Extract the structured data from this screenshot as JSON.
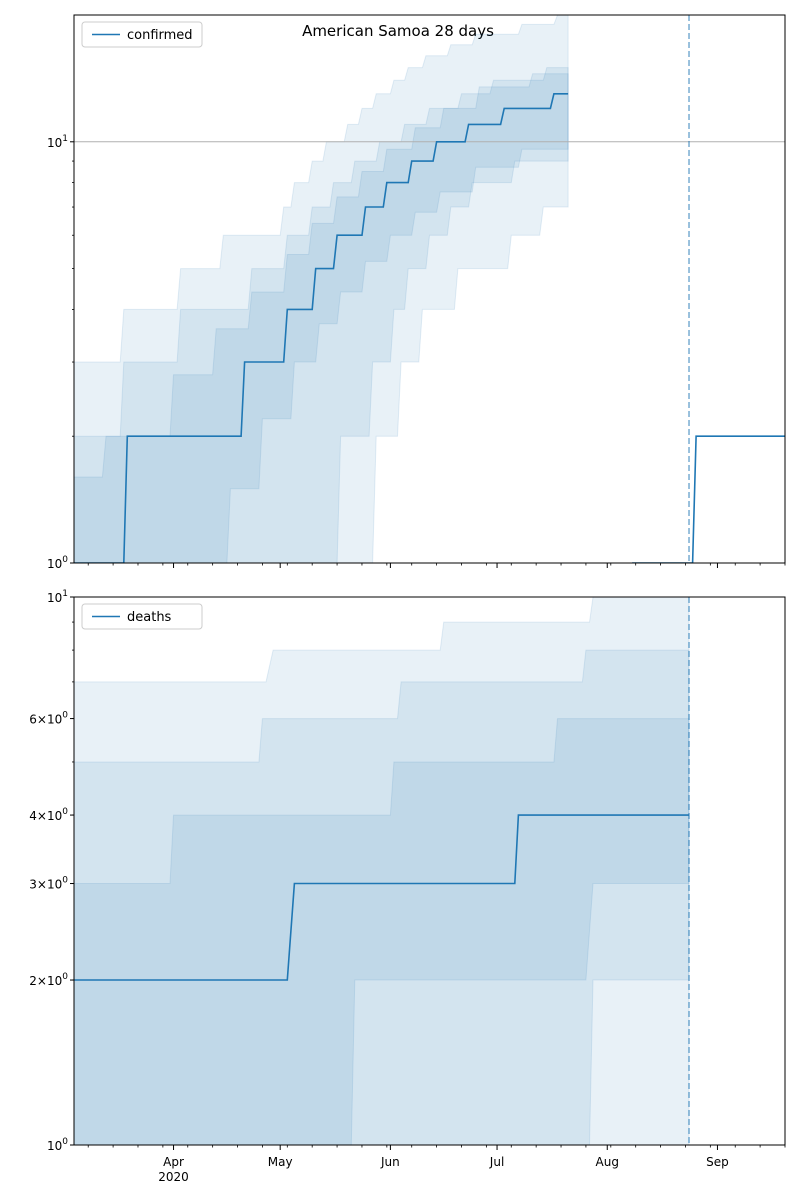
{
  "figure": {
    "title": "American Samoa 28 days"
  },
  "chart_data": [
    {
      "type": "line",
      "name": "confirmed",
      "yscale": "log",
      "ylim": [
        1,
        20
      ],
      "xlim": [
        "2020-03-04",
        "2020-09-20"
      ],
      "yticks": [
        {
          "value": 1,
          "base": "10",
          "exp": "0"
        },
        {
          "value": 10,
          "base": "10",
          "exp": "1"
        }
      ],
      "hline": 10,
      "vline": "2020-08-24",
      "legend": {
        "label": "confirmed",
        "loc": "upper left"
      },
      "series": [
        {
          "name": "confirmed",
          "color": "#1f77b4",
          "points": [
            [
              "2020-03-04",
              1
            ],
            [
              "2020-03-18",
              1
            ],
            [
              "2020-03-19",
              2
            ],
            [
              "2020-04-20",
              2
            ],
            [
              "2020-04-21",
              3
            ],
            [
              "2020-05-02",
              3
            ],
            [
              "2020-05-03",
              4
            ],
            [
              "2020-05-10",
              4
            ],
            [
              "2020-05-11",
              5
            ],
            [
              "2020-05-16",
              5
            ],
            [
              "2020-05-17",
              6
            ],
            [
              "2020-05-24",
              6
            ],
            [
              "2020-05-25",
              7
            ],
            [
              "2020-05-30",
              7
            ],
            [
              "2020-05-31",
              8
            ],
            [
              "2020-06-06",
              8
            ],
            [
              "2020-06-07",
              9
            ],
            [
              "2020-06-13",
              9
            ],
            [
              "2020-06-14",
              10
            ],
            [
              "2020-06-22",
              10
            ],
            [
              "2020-06-23",
              11
            ],
            [
              "2020-07-02",
              11
            ],
            [
              "2020-07-03",
              12
            ],
            [
              "2020-07-16",
              12
            ],
            [
              "2020-07-17",
              13
            ],
            [
              "2020-07-21",
              13
            ]
          ]
        },
        {
          "name": "",
          "color": "#1f77b4",
          "points": [
            [
              "2020-08-08",
              1
            ],
            [
              "2020-08-25",
              1
            ],
            [
              "2020-08-26",
              2
            ],
            [
              "2020-09-20",
              2
            ]
          ]
        }
      ],
      "bands": [
        {
          "opacity": 0.1,
          "upper": [
            [
              "2020-03-04",
              3
            ],
            [
              "2020-03-17",
              3
            ],
            [
              "2020-03-18",
              4
            ],
            [
              "2020-04-02",
              4
            ],
            [
              "2020-04-03",
              5
            ],
            [
              "2020-04-14",
              5
            ],
            [
              "2020-04-15",
              6
            ],
            [
              "2020-05-01",
              6
            ],
            [
              "2020-05-02",
              7
            ],
            [
              "2020-05-04",
              7
            ],
            [
              "2020-05-05",
              8
            ],
            [
              "2020-05-09",
              8
            ],
            [
              "2020-05-10",
              9
            ],
            [
              "2020-05-13",
              9
            ],
            [
              "2020-05-14",
              10
            ],
            [
              "2020-05-19",
              10
            ],
            [
              "2020-05-20",
              11
            ],
            [
              "2020-05-23",
              11
            ],
            [
              "2020-05-24",
              12
            ],
            [
              "2020-05-27",
              12
            ],
            [
              "2020-05-28",
              13
            ],
            [
              "2020-06-01",
              13
            ],
            [
              "2020-06-02",
              14
            ],
            [
              "2020-06-05",
              14
            ],
            [
              "2020-06-06",
              15
            ],
            [
              "2020-06-10",
              15
            ],
            [
              "2020-06-11",
              16
            ],
            [
              "2020-06-17",
              16
            ],
            [
              "2020-06-18",
              17
            ],
            [
              "2020-06-24",
              17
            ],
            [
              "2020-06-25",
              18
            ],
            [
              "2020-07-07",
              18
            ],
            [
              "2020-07-08",
              19
            ],
            [
              "2020-07-17",
              19
            ],
            [
              "2020-07-18",
              20
            ],
            [
              "2020-07-21",
              20
            ]
          ],
          "lower": [
            [
              "2020-03-04",
              1
            ],
            [
              "2020-05-27",
              1
            ],
            [
              "2020-05-28",
              2
            ],
            [
              "2020-06-03",
              2
            ],
            [
              "2020-06-04",
              3
            ],
            [
              "2020-06-09",
              3
            ],
            [
              "2020-06-10",
              4
            ],
            [
              "2020-06-19",
              4
            ],
            [
              "2020-06-20",
              5
            ],
            [
              "2020-07-04",
              5
            ],
            [
              "2020-07-05",
              6
            ],
            [
              "2020-07-13",
              6
            ],
            [
              "2020-07-14",
              7
            ],
            [
              "2020-07-21",
              7
            ]
          ]
        },
        {
          "opacity": 0.1,
          "upper": [
            [
              "2020-03-04",
              2
            ],
            [
              "2020-03-17",
              2
            ],
            [
              "2020-03-18",
              3
            ],
            [
              "2020-04-02",
              3
            ],
            [
              "2020-04-03",
              4
            ],
            [
              "2020-04-22",
              4
            ],
            [
              "2020-04-23",
              5
            ],
            [
              "2020-05-02",
              5
            ],
            [
              "2020-05-03",
              6
            ],
            [
              "2020-05-09",
              6
            ],
            [
              "2020-05-10",
              7
            ],
            [
              "2020-05-15",
              7
            ],
            [
              "2020-05-16",
              8
            ],
            [
              "2020-05-21",
              8
            ],
            [
              "2020-05-22",
              9
            ],
            [
              "2020-05-28",
              9
            ],
            [
              "2020-05-29",
              10
            ],
            [
              "2020-06-04",
              10
            ],
            [
              "2020-06-05",
              11
            ],
            [
              "2020-06-11",
              11
            ],
            [
              "2020-06-12",
              12
            ],
            [
              "2020-06-20",
              12
            ],
            [
              "2020-06-21",
              13
            ],
            [
              "2020-06-29",
              13
            ],
            [
              "2020-06-30",
              14
            ],
            [
              "2020-07-14",
              14
            ],
            [
              "2020-07-15",
              15
            ],
            [
              "2020-07-21",
              15
            ]
          ],
          "lower": [
            [
              "2020-03-04",
              1
            ],
            [
              "2020-05-17",
              1
            ],
            [
              "2020-05-18",
              2
            ],
            [
              "2020-05-26",
              2
            ],
            [
              "2020-05-27",
              3
            ],
            [
              "2020-06-01",
              3
            ],
            [
              "2020-06-02",
              4
            ],
            [
              "2020-06-05",
              4
            ],
            [
              "2020-06-06",
              5
            ],
            [
              "2020-06-11",
              5
            ],
            [
              "2020-06-12",
              6
            ],
            [
              "2020-06-17",
              6
            ],
            [
              "2020-06-18",
              7
            ],
            [
              "2020-06-23",
              7
            ],
            [
              "2020-06-24",
              8
            ],
            [
              "2020-07-05",
              8
            ],
            [
              "2020-07-06",
              9
            ],
            [
              "2020-07-21",
              9
            ]
          ]
        },
        {
          "opacity": 0.1,
          "upper": [
            [
              "2020-03-04",
              1.6
            ],
            [
              "2020-03-12",
              1.6
            ],
            [
              "2020-03-13",
              2
            ],
            [
              "2020-03-31",
              2
            ],
            [
              "2020-04-01",
              2.8
            ],
            [
              "2020-04-12",
              2.8
            ],
            [
              "2020-04-13",
              3.6
            ],
            [
              "2020-04-22",
              3.6
            ],
            [
              "2020-04-23",
              4.4
            ],
            [
              "2020-05-02",
              4.4
            ],
            [
              "2020-05-03",
              5.4
            ],
            [
              "2020-05-09",
              5.4
            ],
            [
              "2020-05-10",
              6.4
            ],
            [
              "2020-05-16",
              6.4
            ],
            [
              "2020-05-17",
              7.4
            ],
            [
              "2020-05-23",
              7.4
            ],
            [
              "2020-05-24",
              8.5
            ],
            [
              "2020-05-30",
              8.5
            ],
            [
              "2020-05-31",
              9.6
            ],
            [
              "2020-06-07",
              9.6
            ],
            [
              "2020-06-08",
              10.8
            ],
            [
              "2020-06-15",
              10.8
            ],
            [
              "2020-06-16",
              12
            ],
            [
              "2020-06-25",
              12
            ],
            [
              "2020-06-26",
              13.5
            ],
            [
              "2020-07-10",
              13.5
            ],
            [
              "2020-07-11",
              14.5
            ],
            [
              "2020-07-21",
              14.5
            ]
          ],
          "lower": [
            [
              "2020-03-04",
              1
            ],
            [
              "2020-04-16",
              1
            ],
            [
              "2020-04-17",
              1.5
            ],
            [
              "2020-04-25",
              1.5
            ],
            [
              "2020-04-26",
              2.2
            ],
            [
              "2020-05-04",
              2.2
            ],
            [
              "2020-05-05",
              3
            ],
            [
              "2020-05-11",
              3
            ],
            [
              "2020-05-12",
              3.7
            ],
            [
              "2020-05-17",
              3.7
            ],
            [
              "2020-05-18",
              4.4
            ],
            [
              "2020-05-24",
              4.4
            ],
            [
              "2020-05-25",
              5.2
            ],
            [
              "2020-05-31",
              5.2
            ],
            [
              "2020-06-01",
              6
            ],
            [
              "2020-06-07",
              6
            ],
            [
              "2020-06-08",
              6.8
            ],
            [
              "2020-06-14",
              6.8
            ],
            [
              "2020-06-15",
              7.6
            ],
            [
              "2020-06-24",
              7.6
            ],
            [
              "2020-06-25",
              8.7
            ],
            [
              "2020-07-07",
              8.7
            ],
            [
              "2020-07-08",
              9.6
            ],
            [
              "2020-07-21",
              9.6
            ]
          ]
        }
      ]
    },
    {
      "type": "line",
      "name": "deaths",
      "yscale": "log",
      "ylim": [
        1,
        10
      ],
      "xlim": [
        "2020-03-04",
        "2020-09-20"
      ],
      "yticks": [
        {
          "value": 1,
          "base": "10",
          "exp": "0"
        },
        {
          "value": 2,
          "coef": "2",
          "times": "×",
          "base": "10",
          "exp": "0"
        },
        {
          "value": 3,
          "coef": "3",
          "times": "×",
          "base": "10",
          "exp": "0"
        },
        {
          "value": 4,
          "coef": "4",
          "times": "×",
          "base": "10",
          "exp": "0"
        },
        {
          "value": 6,
          "coef": "6",
          "times": "×",
          "base": "10",
          "exp": "0"
        },
        {
          "value": 10,
          "base": "10",
          "exp": "1"
        }
      ],
      "vline": "2020-08-24",
      "legend": {
        "label": "deaths",
        "loc": "upper left"
      },
      "series": [
        {
          "name": "deaths",
          "color": "#1f77b4",
          "points": [
            [
              "2020-03-04",
              2
            ],
            [
              "2020-05-03",
              2
            ],
            [
              "2020-05-05",
              3
            ],
            [
              "2020-07-06",
              3
            ],
            [
              "2020-07-07",
              4
            ],
            [
              "2020-08-24",
              4
            ]
          ]
        }
      ],
      "bands": [
        {
          "opacity": 0.1,
          "upper": [
            [
              "2020-03-04",
              7
            ],
            [
              "2020-04-27",
              7
            ],
            [
              "2020-04-29",
              8
            ],
            [
              "2020-06-15",
              8
            ],
            [
              "2020-06-16",
              9
            ],
            [
              "2020-07-27",
              9
            ],
            [
              "2020-07-28",
              10
            ],
            [
              "2020-08-24",
              10
            ]
          ],
          "lower": [
            [
              "2020-03-04",
              1
            ],
            [
              "2020-07-27",
              1
            ],
            [
              "2020-07-28",
              2
            ],
            [
              "2020-08-24",
              2
            ]
          ]
        },
        {
          "opacity": 0.1,
          "upper": [
            [
              "2020-03-04",
              5
            ],
            [
              "2020-04-25",
              5
            ],
            [
              "2020-04-26",
              6
            ],
            [
              "2020-06-03",
              6
            ],
            [
              "2020-06-04",
              7
            ],
            [
              "2020-07-25",
              7
            ],
            [
              "2020-07-26",
              8
            ],
            [
              "2020-08-24",
              8
            ]
          ],
          "lower": [
            [
              "2020-03-04",
              1
            ],
            [
              "2020-05-21",
              1
            ],
            [
              "2020-05-22",
              2
            ],
            [
              "2020-07-26",
              2
            ],
            [
              "2020-07-28",
              3
            ],
            [
              "2020-08-24",
              3
            ]
          ]
        },
        {
          "opacity": 0.1,
          "upper": [
            [
              "2020-03-04",
              3
            ],
            [
              "2020-03-31",
              3
            ],
            [
              "2020-04-01",
              4
            ],
            [
              "2020-06-01",
              4
            ],
            [
              "2020-06-02",
              5
            ],
            [
              "2020-07-17",
              5
            ],
            [
              "2020-07-18",
              6
            ],
            [
              "2020-08-24",
              6
            ]
          ],
          "lower": [
            [
              "2020-03-04",
              1
            ],
            [
              "2020-08-24",
              1
            ]
          ]
        }
      ]
    }
  ],
  "x_axis": {
    "ticks": [
      {
        "date": "2020-04-01",
        "label": "Apr",
        "sub": "2020"
      },
      {
        "date": "2020-05-01",
        "label": "May",
        "sub": ""
      },
      {
        "date": "2020-06-01",
        "label": "Jun",
        "sub": ""
      },
      {
        "date": "2020-07-01",
        "label": "Jul",
        "sub": ""
      },
      {
        "date": "2020-08-01",
        "label": "Aug",
        "sub": ""
      },
      {
        "date": "2020-09-01",
        "label": "Sep",
        "sub": ""
      }
    ]
  },
  "colors": {
    "line": "#1f77b4",
    "band": "#1f77b4",
    "hline": "#b0b0b0",
    "frame": "#000000"
  }
}
